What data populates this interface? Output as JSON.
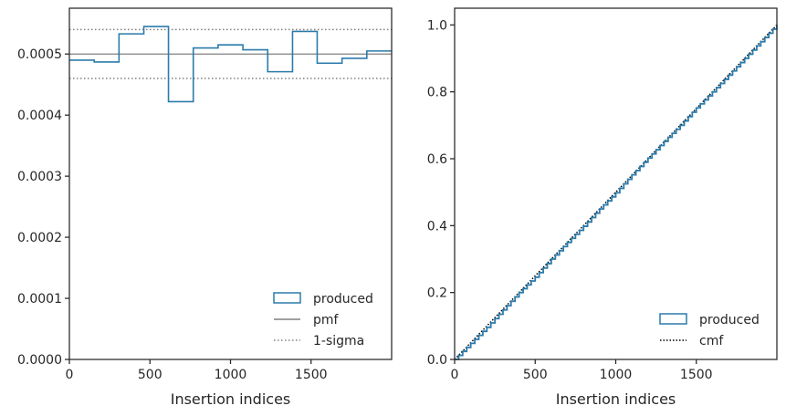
{
  "chart_data": [
    {
      "type": "histogram-step",
      "xlabel": "Insertion indices",
      "ylabel": "",
      "xlim": [
        0,
        2000
      ],
      "ylim": [
        0,
        0.000575
      ],
      "xticks": [
        0,
        500,
        1000,
        1500
      ],
      "xtick_labels": [
        "0",
        "500",
        "1000",
        "1500"
      ],
      "yticks": [
        0,
        0.0001,
        0.0002,
        0.0003,
        0.0004,
        0.0005
      ],
      "ytick_labels": [
        "0.0000",
        "0.0001",
        "0.0002",
        "0.0003",
        "0.0004",
        "0.0005"
      ],
      "bin_edges": [
        0,
        154,
        308,
        462,
        615,
        769,
        923,
        1077,
        1231,
        1385,
        1538,
        1692,
        1846,
        2000
      ],
      "series": [
        {
          "name": "produced",
          "style": "step",
          "color": "#2b7bab",
          "values": [
            0.00049,
            0.000487,
            0.000533,
            0.000545,
            0.000422,
            0.00051,
            0.000515,
            0.000507,
            0.000471,
            0.000537,
            0.000485,
            0.000493,
            0.000505
          ]
        },
        {
          "name": "pmf",
          "style": "solid",
          "color": "#808080",
          "values": [
            0.0005
          ]
        },
        {
          "name": "1-sigma",
          "style": "dotted",
          "color": "#808080",
          "values": [
            0.00046,
            0.00054
          ]
        }
      ],
      "legend": [
        "produced",
        "pmf",
        "1-sigma"
      ],
      "legend_position": "lower-right"
    },
    {
      "type": "line",
      "xlabel": "Insertion indices",
      "ylabel": "",
      "xlim": [
        0,
        2000
      ],
      "ylim": [
        0,
        1.05
      ],
      "xticks": [
        0,
        500,
        1000,
        1500
      ],
      "xtick_labels": [
        "0",
        "500",
        "1000",
        "1500"
      ],
      "yticks": [
        0,
        0.2,
        0.4,
        0.6,
        0.8,
        1.0
      ],
      "ytick_labels": [
        "0.0",
        "0.2",
        "0.4",
        "0.6",
        "0.8",
        "1.0"
      ],
      "series": [
        {
          "name": "produced",
          "style": "step",
          "color": "#2b7bab",
          "x": [
            0,
            100,
            200,
            300,
            400,
            500,
            600,
            700,
            800,
            900,
            1000,
            1100,
            1200,
            1300,
            1400,
            1500,
            1600,
            1700,
            1800,
            1900,
            2000
          ],
          "y": [
            0,
            0.048,
            0.096,
            0.148,
            0.2,
            0.246,
            0.3,
            0.35,
            0.398,
            0.45,
            0.498,
            0.552,
            0.602,
            0.652,
            0.7,
            0.752,
            0.8,
            0.85,
            0.9,
            0.95,
            1.0
          ]
        },
        {
          "name": "cmf",
          "style": "dotted",
          "color": "#000000",
          "x": [
            0,
            2000
          ],
          "y": [
            0,
            1.0
          ]
        }
      ],
      "legend": [
        "produced",
        "cmf"
      ],
      "legend_position": "lower-right"
    }
  ]
}
